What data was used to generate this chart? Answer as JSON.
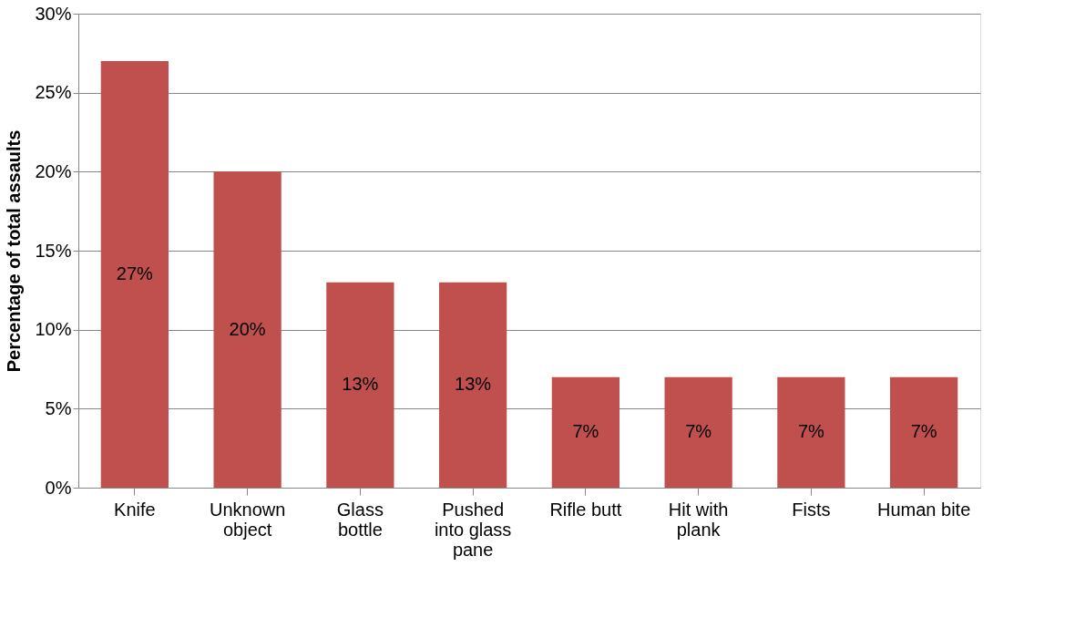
{
  "chart_data": {
    "type": "bar",
    "ylabel": "Percentage of total assaults",
    "categories": [
      "Knife",
      "Unknown object",
      "Glass bottle",
      "Pushed into glass pane",
      "Rifle butt",
      "Hit with plank",
      "Fists",
      "Human bite"
    ],
    "values": [
      27,
      20,
      13,
      13,
      7,
      7,
      7,
      7
    ],
    "value_labels": [
      "27%",
      "20%",
      "13%",
      "13%",
      "7%",
      "7%",
      "7%",
      "7%"
    ],
    "color": "#c0504d",
    "ylim": [
      0,
      30
    ],
    "yticks": [
      {
        "value": 0,
        "label": "0%"
      },
      {
        "value": 5,
        "label": "5%"
      },
      {
        "value": 10,
        "label": "10%"
      },
      {
        "value": 15,
        "label": "15%"
      },
      {
        "value": 20,
        "label": "20%"
      },
      {
        "value": 25,
        "label": "25%"
      },
      {
        "value": 30,
        "label": "30%"
      }
    ],
    "grid": "y"
  }
}
